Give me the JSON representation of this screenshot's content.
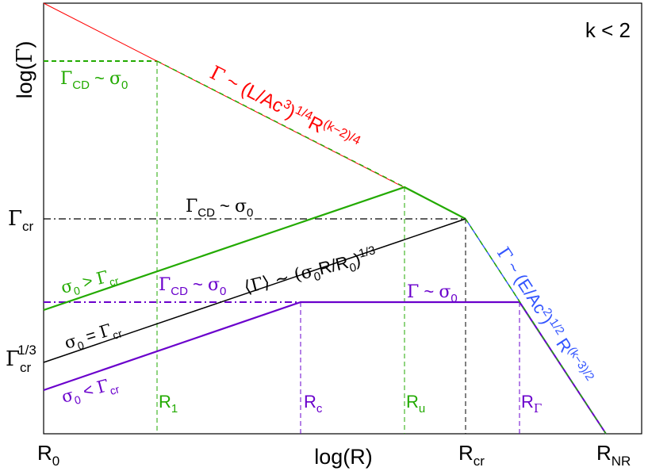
{
  "colors": {
    "red": "#ff0000",
    "green": "#22aa00",
    "black": "#000000",
    "purple": "#6a00cc",
    "blue": "#3355ff"
  },
  "regime": {
    "label": "k < 2"
  },
  "axes": {
    "x_label": {
      "base": "log(R)"
    },
    "y_label": {
      "open": "log(",
      "greek": "Γ",
      "close": ")"
    }
  },
  "x_ticks": {
    "r0": {
      "base": "R",
      "sub": "0"
    },
    "rcr": {
      "base": "R",
      "sub": "cr"
    },
    "rnr": {
      "base": "R",
      "sub": "NR"
    }
  },
  "y_ticks": {
    "gamma_cr": {
      "greek": "Γ",
      "sub": "cr"
    },
    "gamma_cr_third": {
      "greek": "Γ",
      "sub": "cr",
      "sup": "1/3"
    }
  },
  "radii": {
    "r1": {
      "base": "R",
      "sub": "1"
    },
    "rc": {
      "base": "R",
      "sub": "c"
    },
    "ru": {
      "base": "R",
      "sub": "u"
    },
    "rgamma": {
      "base": "R",
      "sub": "Γ"
    }
  },
  "labels": {
    "red_scaling": {
      "greek": "Γ",
      "t1": " ~ (L/Ac",
      "s1": "3",
      "t2": ")",
      "s2": "1/4",
      "t3": "R",
      "s3": "(k−2)/4"
    },
    "blue_scaling": {
      "greek": "Γ",
      "t1": " ~ (E/Ac",
      "s1": "2",
      "t2": ")",
      "s2": "1/2",
      "t3": " R",
      "s3": "(k−3)/2"
    },
    "green_cd_top": {
      "greek": "Γ",
      "sub": "CD",
      "mid": " ~ ",
      "greek2": "σ",
      "sub2": "0"
    },
    "black_cd": {
      "greek": "Γ",
      "sub": "CD",
      "mid": " ~ ",
      "greek2": "σ",
      "sub2": "0"
    },
    "purple_cd": {
      "greek": "Γ",
      "sub": "CD",
      "mid": " ~ ",
      "greek2": "σ",
      "sub2": "0"
    },
    "purple_coast": {
      "greek": "Γ",
      "mid": " ~ ",
      "greek2": "σ",
      "sub2": "0"
    },
    "black_mean": {
      "open": "⟨Γ⟩ ~ (",
      "greek": "σ",
      "s1": "0",
      "t1": "R/R",
      "s2": "0",
      "t2": ")",
      "sup": "1/3"
    },
    "green_case": {
      "greek": "σ",
      "s1": "0",
      "mid": " > ",
      "greek2": "Γ",
      "s2": "cr"
    },
    "black_case": {
      "greek": "σ",
      "s1": "0",
      "mid": " = ",
      "greek2": "Γ",
      "s2": "cr"
    },
    "purple_case": {
      "greek": "σ",
      "s1": "0",
      "mid": " < ",
      "greek2": "Γ",
      "s2": "cr"
    }
  }
}
